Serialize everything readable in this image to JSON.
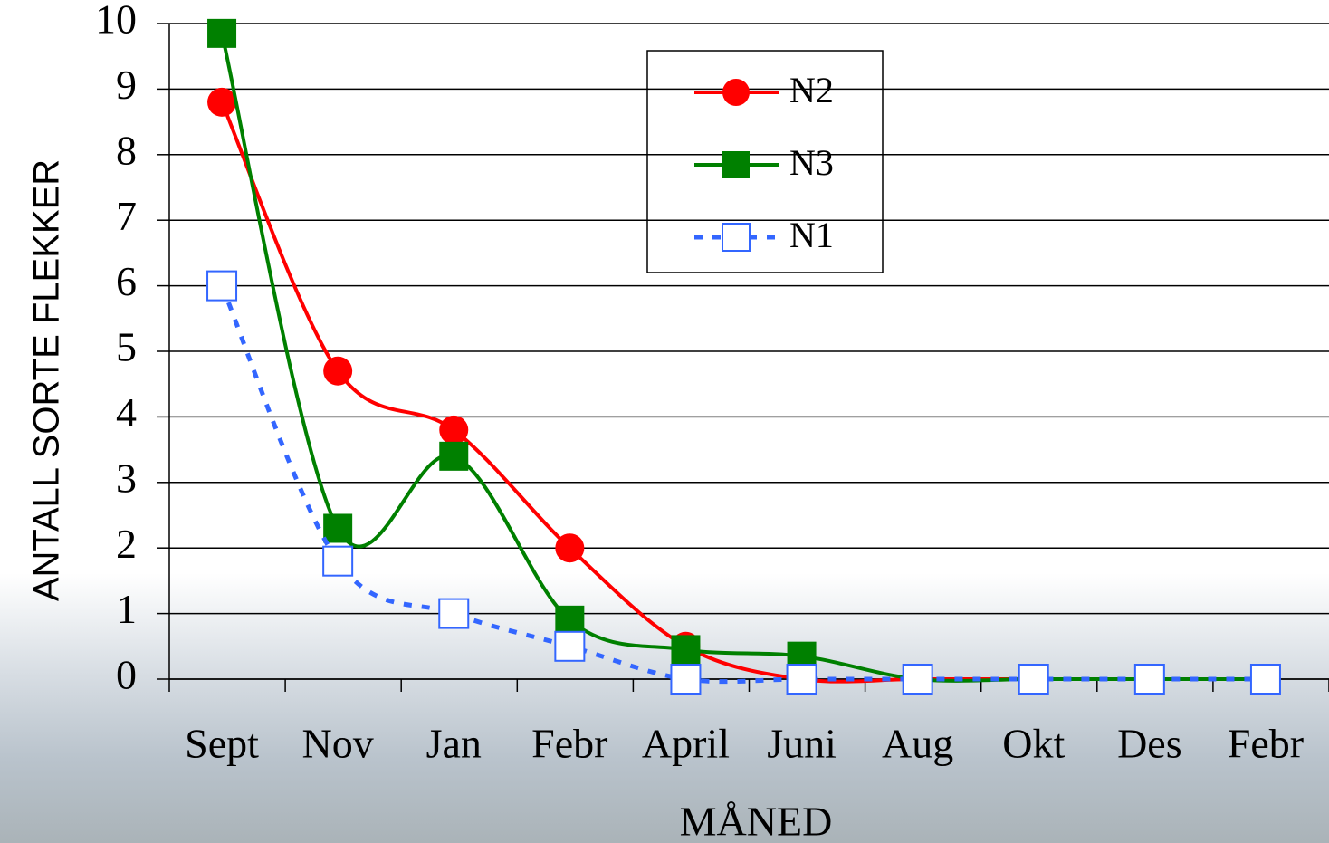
{
  "chart_data": {
    "type": "line",
    "x_label": "MÅNED",
    "y_label": "ANTALL SORTE FLEKKER",
    "categories": [
      "Sept",
      "Nov",
      "Jan",
      "Febr",
      "April",
      "Juni",
      "Aug",
      "Okt",
      "Des",
      "Febr"
    ],
    "series": [
      {
        "name": "N2",
        "color": "#ff0000",
        "marker": "circle",
        "dashed": false,
        "values": [
          8.8,
          4.7,
          3.8,
          2.0,
          0.5,
          0,
          0,
          0,
          0,
          0
        ]
      },
      {
        "name": "N3",
        "color": "#008000",
        "marker": "square",
        "dashed": false,
        "values": [
          9.85,
          2.3,
          3.4,
          0.9,
          0.45,
          0.35,
          0,
          0,
          0,
          0
        ]
      },
      {
        "name": "N1",
        "color": "#3366ff",
        "marker": "open-square",
        "dashed": true,
        "values": [
          6.0,
          1.8,
          1.0,
          0.5,
          0,
          0,
          0,
          0,
          0,
          0
        ]
      }
    ],
    "ylim": [
      0,
      10
    ],
    "yticks": [
      0,
      1,
      2,
      3,
      4,
      5,
      6,
      7,
      8,
      9,
      10
    ],
    "grid": true,
    "legend": "top-center"
  }
}
